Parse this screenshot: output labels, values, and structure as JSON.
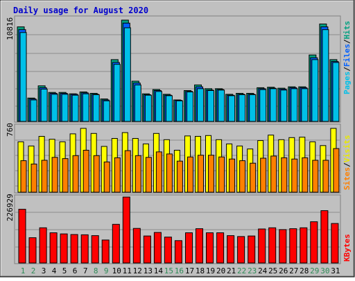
{
  "title": "Daily usage for August 2020",
  "colors": {
    "background": "#c0c0c0",
    "title": "#0000cc",
    "hits": "#00a080",
    "files": "#0060ff",
    "pages": "#00c0e8",
    "visits": "#ffff00",
    "sites": "#ff8000",
    "kbytes": "#ff0000",
    "weekend_label": "#2e8b57",
    "weekday_label": "#000000"
  },
  "chart_data": [
    {
      "type": "bar",
      "panel": "hits-files-pages",
      "y_max_label": "10816",
      "legend": [
        "Pages",
        "/",
        "Files",
        "/",
        "Hits"
      ],
      "ylim": [
        0,
        10816
      ],
      "categories": [
        "1",
        "2",
        "3",
        "4",
        "5",
        "6",
        "7",
        "8",
        "9",
        "10",
        "11",
        "12",
        "13",
        "14",
        "15",
        "16",
        "17",
        "18",
        "19",
        "20",
        "21",
        "22",
        "23",
        "24",
        "25",
        "26",
        "27",
        "28",
        "29",
        "30",
        "31"
      ],
      "series": [
        {
          "name": "Hits",
          "values": [
            10100,
            2500,
            3800,
            3100,
            3100,
            2950,
            3150,
            3000,
            2400,
            6600,
            10816,
            4300,
            2950,
            3400,
            2900,
            2300,
            3300,
            3900,
            3500,
            3500,
            2900,
            3000,
            3000,
            3600,
            3650,
            3550,
            3700,
            3700,
            7100,
            10400,
            6600
          ]
        },
        {
          "name": "Files",
          "values": [
            9800,
            2400,
            3600,
            3000,
            3000,
            2900,
            3050,
            2900,
            2300,
            6300,
            10500,
            4100,
            2850,
            3300,
            2800,
            2250,
            3200,
            3700,
            3350,
            3400,
            2800,
            2900,
            2900,
            3500,
            3550,
            3450,
            3600,
            3600,
            6800,
            10100,
            6400
          ]
        },
        {
          "name": "Pages",
          "values": [
            9500,
            2300,
            3450,
            2900,
            2900,
            2800,
            2950,
            2850,
            2200,
            6100,
            10000,
            3900,
            2800,
            3200,
            2750,
            2200,
            3150,
            3500,
            3300,
            3350,
            2750,
            2850,
            2850,
            3400,
            3500,
            3350,
            3500,
            3500,
            6600,
            9800,
            6300
          ]
        }
      ]
    },
    {
      "type": "bar",
      "panel": "visits-sites",
      "y_max_label": "760",
      "legend": [
        "Sites",
        "/",
        "Visits"
      ],
      "ylim": [
        0,
        760
      ],
      "categories": [
        "1",
        "2",
        "3",
        "4",
        "5",
        "6",
        "7",
        "8",
        "9",
        "10",
        "11",
        "12",
        "13",
        "14",
        "15",
        "16",
        "17",
        "18",
        "19",
        "20",
        "21",
        "22",
        "23",
        "24",
        "25",
        "26",
        "27",
        "28",
        "29",
        "30",
        "31"
      ],
      "series": [
        {
          "name": "Visits",
          "values": [
            600,
            550,
            665,
            630,
            600,
            695,
            760,
            700,
            545,
            640,
            710,
            640,
            575,
            700,
            625,
            500,
            670,
            665,
            675,
            625,
            575,
            550,
            515,
            615,
            680,
            625,
            650,
            655,
            600,
            555,
            760
          ]
        },
        {
          "name": "Sites",
          "values": [
            375,
            335,
            380,
            415,
            400,
            435,
            500,
            435,
            360,
            410,
            495,
            435,
            415,
            480,
            455,
            370,
            420,
            440,
            440,
            420,
            395,
            375,
            345,
            405,
            430,
            410,
            395,
            410,
            380,
            380,
            520
          ]
        }
      ]
    },
    {
      "type": "bar",
      "panel": "kbytes",
      "y_max_label": "226929",
      "legend": [
        "KBytes"
      ],
      "ylim": [
        0,
        226929
      ],
      "categories": [
        "1",
        "2",
        "3",
        "4",
        "5",
        "6",
        "7",
        "8",
        "9",
        "10",
        "11",
        "12",
        "13",
        "14",
        "15",
        "16",
        "17",
        "18",
        "19",
        "20",
        "21",
        "22",
        "23",
        "24",
        "25",
        "26",
        "27",
        "28",
        "29",
        "30",
        "31"
      ],
      "series": [
        {
          "name": "KBytes",
          "values": [
            185000,
            87000,
            121000,
            104000,
            100000,
            98000,
            97000,
            94000,
            79000,
            133000,
            226929,
            119000,
            93000,
            105000,
            89000,
            77000,
            104000,
            118000,
            104000,
            104000,
            94000,
            91000,
            93000,
            117000,
            121000,
            115000,
            118000,
            121000,
            142000,
            180000,
            136000
          ]
        }
      ]
    }
  ],
  "day_labels": [
    "1",
    "2",
    "3",
    "4",
    "5",
    "6",
    "7",
    "8",
    "9",
    "10",
    "11",
    "12",
    "13",
    "14",
    "15",
    "16",
    "17",
    "18",
    "19",
    "20",
    "21",
    "22",
    "23",
    "24",
    "25",
    "26",
    "27",
    "28",
    "29",
    "30",
    "31"
  ],
  "weekend_days": [
    "1",
    "2",
    "8",
    "9",
    "15",
    "16",
    "22",
    "23",
    "29",
    "30"
  ]
}
